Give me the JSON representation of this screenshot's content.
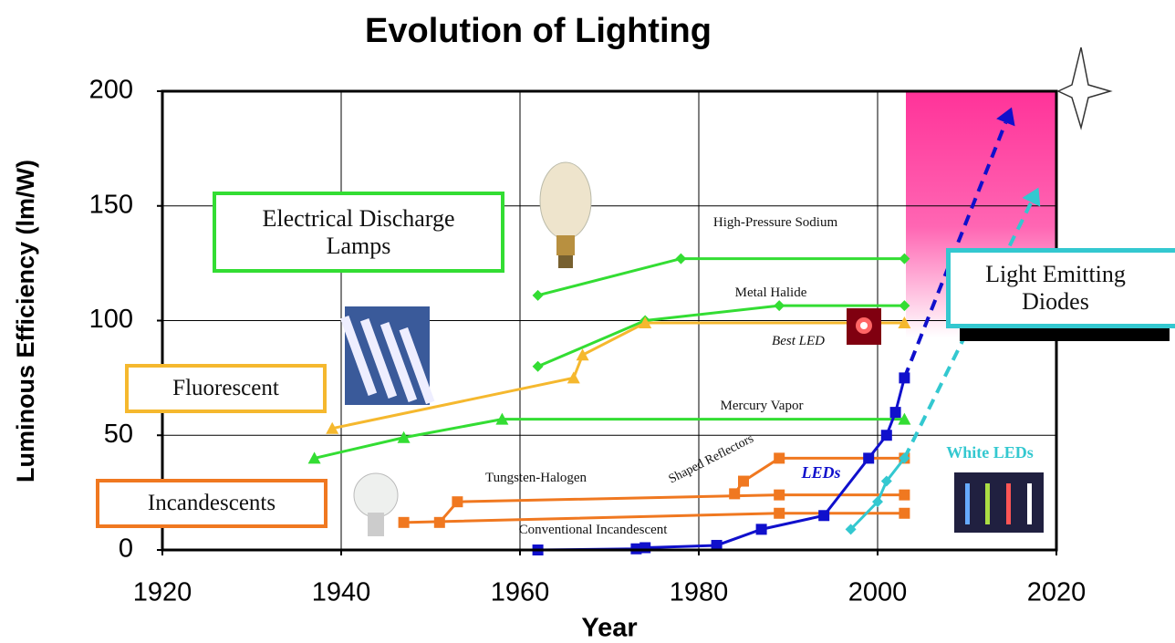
{
  "chart_data": {
    "type": "line",
    "title": "Evolution of Lighting",
    "x_label": "Year",
    "y_label": "Luminous Efficiency (lm/W)",
    "xlim": [
      1920,
      2020
    ],
    "ylim": [
      0,
      200
    ],
    "xticks": [
      1920,
      1940,
      1960,
      1980,
      2000,
      2020
    ],
    "yticks": [
      0,
      50,
      100,
      150,
      200
    ],
    "grid": true,
    "series": [
      {
        "color": "#33dd33",
        "marker": "diamond",
        "x": [
          1962,
          1978,
          2003
        ],
        "values": [
          111,
          127,
          127
        ]
      },
      {
        "color": "#33dd33",
        "marker": "diamond",
        "x": [
          1962,
          1974,
          1989,
          2003
        ],
        "values": [
          80,
          100,
          106.5,
          106.5
        ]
      },
      {
        "color": "#33dd33",
        "marker": "triangle",
        "x": [
          1937,
          1947,
          1958,
          2003
        ],
        "values": [
          40,
          49,
          57,
          57
        ]
      },
      {
        "color": "#f5b82e",
        "marker": "triangle",
        "x": [
          1939,
          1966,
          1967,
          1974,
          2003
        ],
        "values": [
          53,
          75,
          85,
          99,
          99
        ]
      },
      {
        "color": "#f07820",
        "marker": "square",
        "x": [
          1951,
          1953,
          1989,
          2003
        ],
        "values": [
          12,
          21,
          24,
          24
        ]
      },
      {
        "color": "#f07820",
        "marker": "square",
        "x": [
          1984,
          1985,
          1989,
          2003
        ],
        "values": [
          24.5,
          30,
          40,
          40
        ]
      },
      {
        "color": "#f07820",
        "marker": "square",
        "x": [
          1947,
          1989,
          2003
        ],
        "values": [
          12,
          16,
          16
        ]
      },
      {
        "color": "#1010cc",
        "marker": "square",
        "x": [
          1962,
          1973,
          1974,
          1982,
          1987,
          1994,
          1999,
          2001,
          2002,
          2003
        ],
        "values": [
          0,
          0.5,
          1,
          2,
          9,
          15,
          40,
          50,
          60,
          75
        ],
        "arrow": {
          "x": 2015,
          "y": 193
        }
      },
      {
        "color": "#33c8d0",
        "marker": "diamond",
        "x": [
          1997,
          2000,
          2001,
          2003
        ],
        "values": [
          9,
          21,
          30,
          40
        ],
        "arrow": {
          "x": 2018,
          "y": 158
        }
      }
    ],
    "boxes": [
      "Electrical Discharge Lamps",
      "Fluorescent",
      "Incandescents",
      "Light Emitting Diodes"
    ],
    "annotations": [
      "High-Pressure Sodium",
      "Metal Halide",
      "Best LED",
      "Mercury Vapor",
      "Tungsten-Halogen",
      "Shaped Reflectors",
      "Conventional Incandescent",
      "LEDs",
      "White LEDs"
    ]
  }
}
